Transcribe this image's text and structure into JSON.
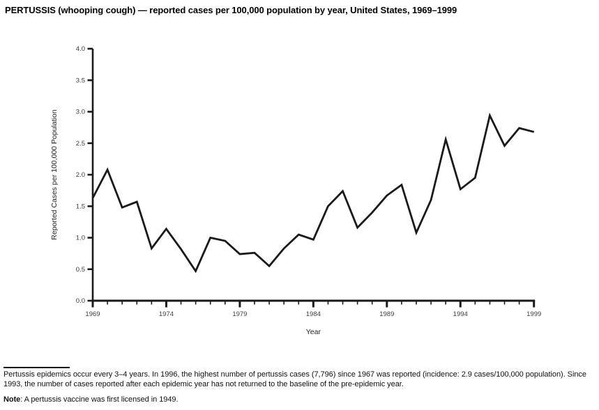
{
  "title": "PERTUSSIS (whooping cough) — reported cases per 100,000 population by year, United States, 1969–1999",
  "chart_data": {
    "type": "line",
    "title": "PERTUSSIS (whooping cough) — reported cases per 100,000 population by year, United States, 1969–1999",
    "xlabel": "Year",
    "ylabel": "Reported Cases per 100,000 Population",
    "xlim": [
      1969,
      1999
    ],
    "ylim": [
      0.0,
      4.0
    ],
    "y_ticks": [
      0.0,
      0.5,
      1.0,
      1.5,
      2.0,
      2.5,
      3.0,
      3.5,
      4.0
    ],
    "x_major_ticks": [
      1969,
      1974,
      1979,
      1984,
      1989,
      1994,
      1999
    ],
    "x_minor_tick_interval": 1,
    "grid": false,
    "legend": false,
    "line_color": "#1a1a1a",
    "x": [
      1969,
      1970,
      1971,
      1972,
      1973,
      1974,
      1975,
      1976,
      1977,
      1978,
      1979,
      1980,
      1981,
      1982,
      1983,
      1984,
      1985,
      1986,
      1987,
      1988,
      1989,
      1990,
      1991,
      1992,
      1993,
      1994,
      1995,
      1996,
      1997,
      1998,
      1999
    ],
    "values": [
      1.63,
      2.08,
      1.48,
      1.57,
      0.83,
      1.14,
      0.82,
      0.47,
      1.0,
      0.95,
      0.74,
      0.76,
      0.55,
      0.83,
      1.05,
      0.97,
      1.5,
      1.74,
      1.16,
      1.4,
      1.67,
      1.84,
      1.08,
      1.6,
      2.56,
      1.77,
      1.95,
      2.94,
      2.46,
      2.74,
      2.68
    ]
  },
  "footnote": {
    "paragraph": "Pertussis epidemics occur every 3–4 years. In 1996, the highest number of pertussis cases (7,796) since 1967 was reported (incidence: 2.9 cases/100,000 population). Since 1993, the number of cases reported after each epidemic year has not returned to the baseline of the pre-epidemic year.",
    "note_label": "Note",
    "note_text": ": A pertussis vaccine was first licensed in 1949."
  }
}
